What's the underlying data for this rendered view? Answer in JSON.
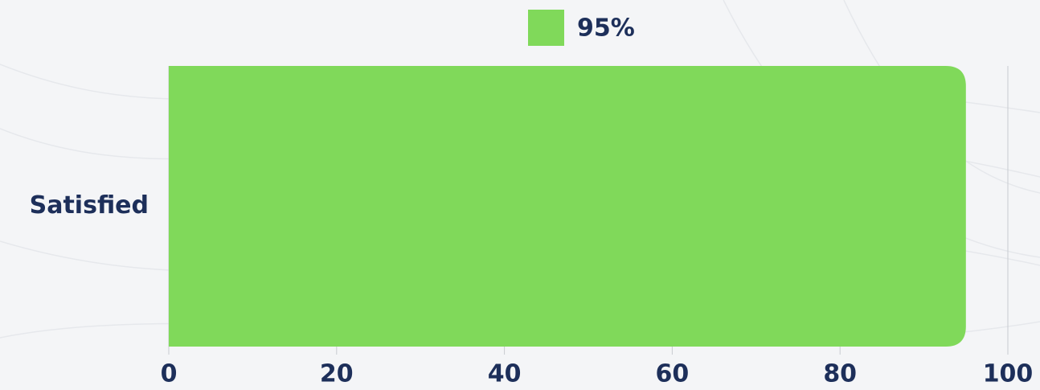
{
  "chart_data": {
    "type": "bar",
    "orientation": "horizontal",
    "categories": [
      "Satisfied"
    ],
    "series": [
      {
        "name": "95%",
        "color": "#80d95a",
        "values": [
          95
        ]
      }
    ],
    "xlim": [
      0,
      100
    ],
    "xticks": [
      0,
      20,
      40,
      60,
      80,
      100
    ],
    "grid": true,
    "legend": "top"
  }
}
